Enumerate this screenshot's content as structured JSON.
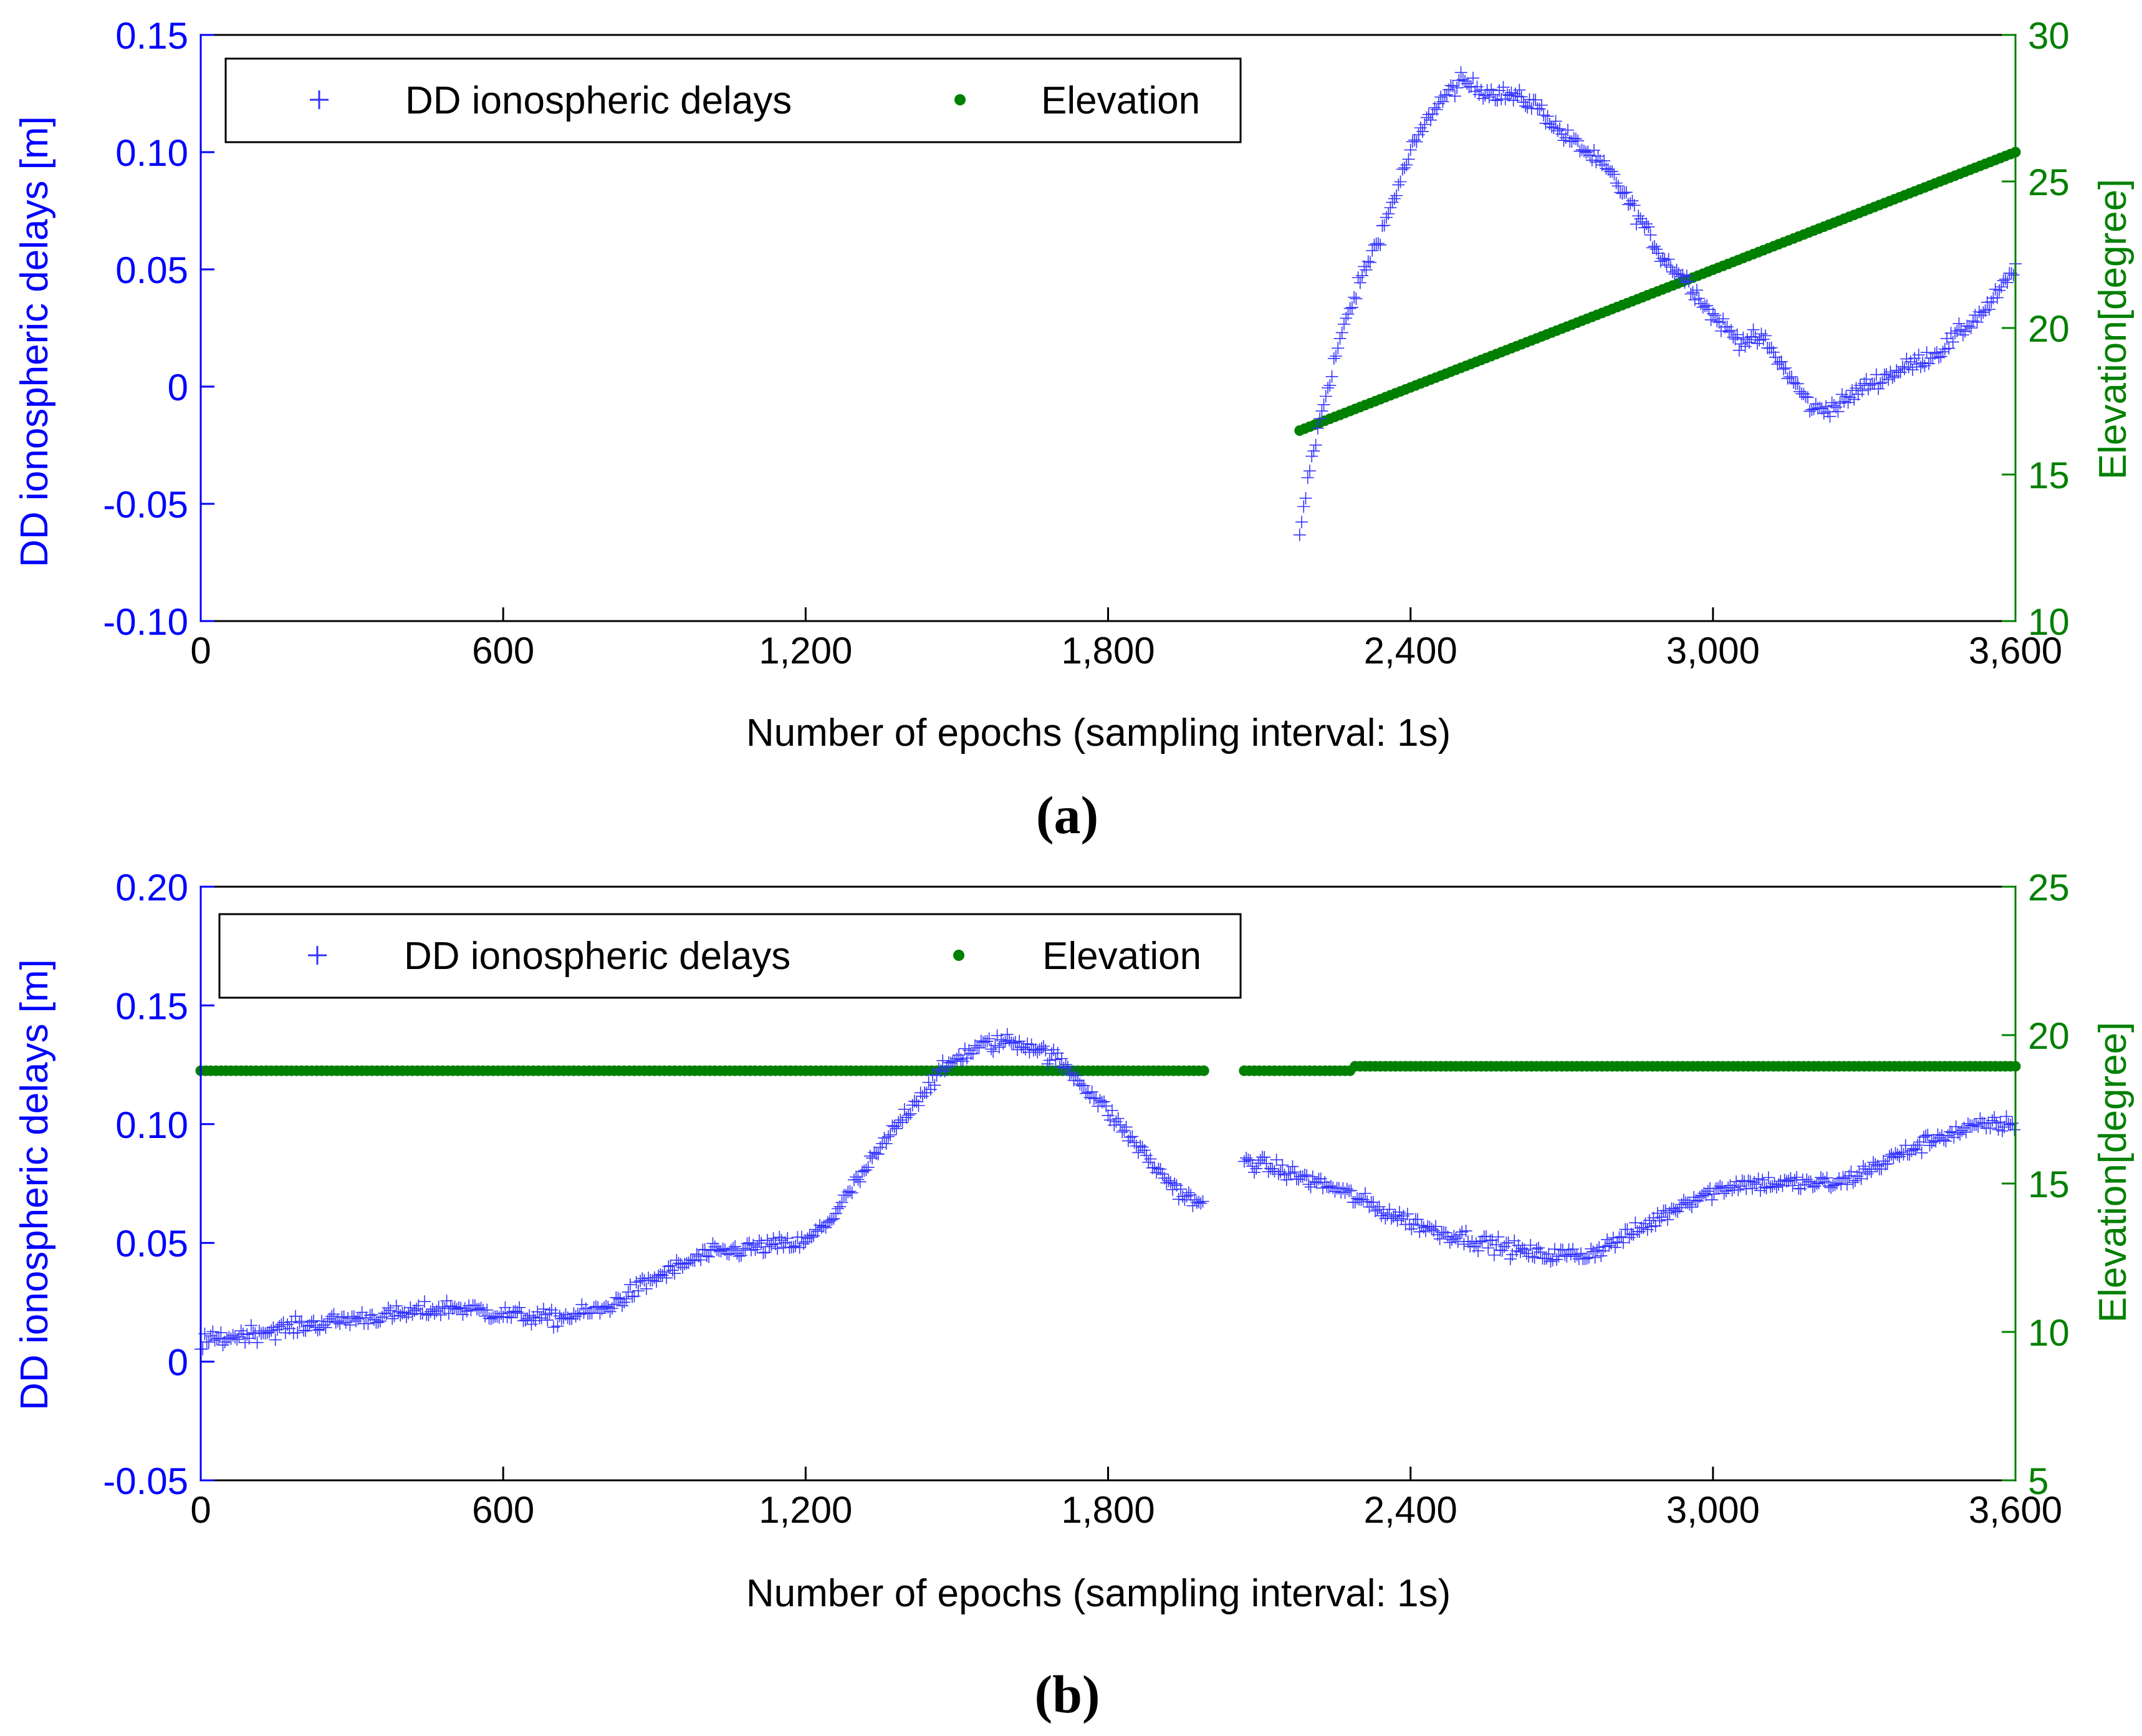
{
  "chart_data": [
    {
      "type": "scatter",
      "panel_label": "(a)",
      "xlabel": "Number of epochs (sampling interval: 1s)",
      "ylabel_left": "DD ionospheric delays [m]",
      "ylabel_right": "Elevation[degree]",
      "xlim": [
        0,
        3600
      ],
      "ylim_left": [
        -0.1,
        0.15
      ],
      "ylim_right": [
        10,
        30
      ],
      "x_ticks": [
        "0",
        "600",
        "1,200",
        "1,800",
        "2,400",
        "3,000",
        "3,600"
      ],
      "y_ticks_left": [
        "-0.10",
        "-0.05",
        "0",
        "0.05",
        "0.10",
        "0.15"
      ],
      "y_ticks_right": [
        "10",
        "15",
        "20",
        "25",
        "30"
      ],
      "legend": [
        "DD ionospheric delays",
        "Elevation"
      ],
      "legend_position": "top-left",
      "series": [
        {
          "name": "DD ionospheric delays",
          "axis": "left",
          "marker": "+",
          "color": "#3333ff",
          "x": [
            2180,
            2200,
            2230,
            2260,
            2300,
            2350,
            2400,
            2450,
            2500,
            2550,
            2600,
            2650,
            2700,
            2750,
            2800,
            2850,
            2900,
            2950,
            3000,
            3050,
            3100,
            3150,
            3200,
            3250,
            3300,
            3350,
            3400,
            3450,
            3500,
            3550,
            3600
          ],
          "y": [
            -0.065,
            -0.035,
            -0.005,
            0.02,
            0.045,
            0.07,
            0.1,
            0.12,
            0.13,
            0.126,
            0.124,
            0.12,
            0.108,
            0.1,
            0.09,
            0.073,
            0.055,
            0.045,
            0.03,
            0.02,
            0.02,
            0.005,
            -0.01,
            -0.008,
            0.0,
            0.005,
            0.01,
            0.015,
            0.025,
            0.035,
            0.05
          ]
        },
        {
          "name": "Elevation",
          "axis": "right",
          "marker": "o",
          "color": "#008000",
          "x": [
            2180,
            3600
          ],
          "y": [
            16.5,
            26.0
          ]
        }
      ]
    },
    {
      "type": "scatter",
      "panel_label": "(b)",
      "xlabel": "Number of epochs (sampling interval: 1s)",
      "ylabel_left": "DD ionospheric delays [m]",
      "ylabel_right": "Elevation[degree]",
      "xlim": [
        0,
        3600
      ],
      "ylim_left": [
        -0.05,
        0.2
      ],
      "ylim_right": [
        5,
        25
      ],
      "x_ticks": [
        "0",
        "600",
        "1,200",
        "1,800",
        "2,400",
        "3,000",
        "3,600"
      ],
      "y_ticks_left": [
        "-0.05",
        "0",
        "0.05",
        "0.10",
        "0.15",
        "0.20"
      ],
      "y_ticks_right": [
        "5",
        "10",
        "15",
        "20",
        "25"
      ],
      "legend": [
        "DD ionospheric delays",
        "Elevation"
      ],
      "legend_position": "top-left",
      "series": [
        {
          "name": "DD ionospheric delays",
          "axis": "left",
          "marker": "+",
          "color": "#3333ff",
          "segments": [
            {
              "x": [
                0,
                100,
                200,
                300,
                400,
                500,
                600,
                700,
                800,
                900,
                1000,
                1100,
                1200,
                1250,
                1300,
                1350,
                1400,
                1450,
                1500,
                1550,
                1600,
                1650,
                1700,
                1750,
                1800,
                1850,
                1900,
                1950,
                1990
              ],
              "y": [
                0.008,
                0.012,
                0.015,
                0.018,
                0.02,
                0.023,
                0.02,
                0.018,
                0.022,
                0.035,
                0.045,
                0.048,
                0.05,
                0.06,
                0.075,
                0.09,
                0.105,
                0.118,
                0.128,
                0.133,
                0.135,
                0.133,
                0.127,
                0.117,
                0.105,
                0.093,
                0.08,
                0.07,
                0.065
              ]
            },
            {
              "x": [
                2070,
                2150,
                2250,
                2350,
                2450,
                2550,
                2650,
                2750,
                2850,
                2950,
                3050,
                3150,
                3250,
                3350,
                3450,
                3550,
                3600
              ],
              "y": [
                0.085,
                0.08,
                0.073,
                0.063,
                0.055,
                0.05,
                0.045,
                0.045,
                0.055,
                0.068,
                0.075,
                0.075,
                0.075,
                0.085,
                0.095,
                0.1,
                0.1
              ]
            }
          ]
        },
        {
          "name": "Elevation",
          "axis": "right",
          "marker": "o",
          "color": "#008000",
          "segments": [
            {
              "x": [
                0,
                1990
              ],
              "y": [
                18.8,
                18.8
              ]
            },
            {
              "x": [
                2070,
                2280
              ],
              "y": [
                18.8,
                18.8
              ]
            },
            {
              "x": [
                2290,
                3600
              ],
              "y": [
                18.95,
                18.95
              ]
            }
          ]
        }
      ]
    }
  ]
}
